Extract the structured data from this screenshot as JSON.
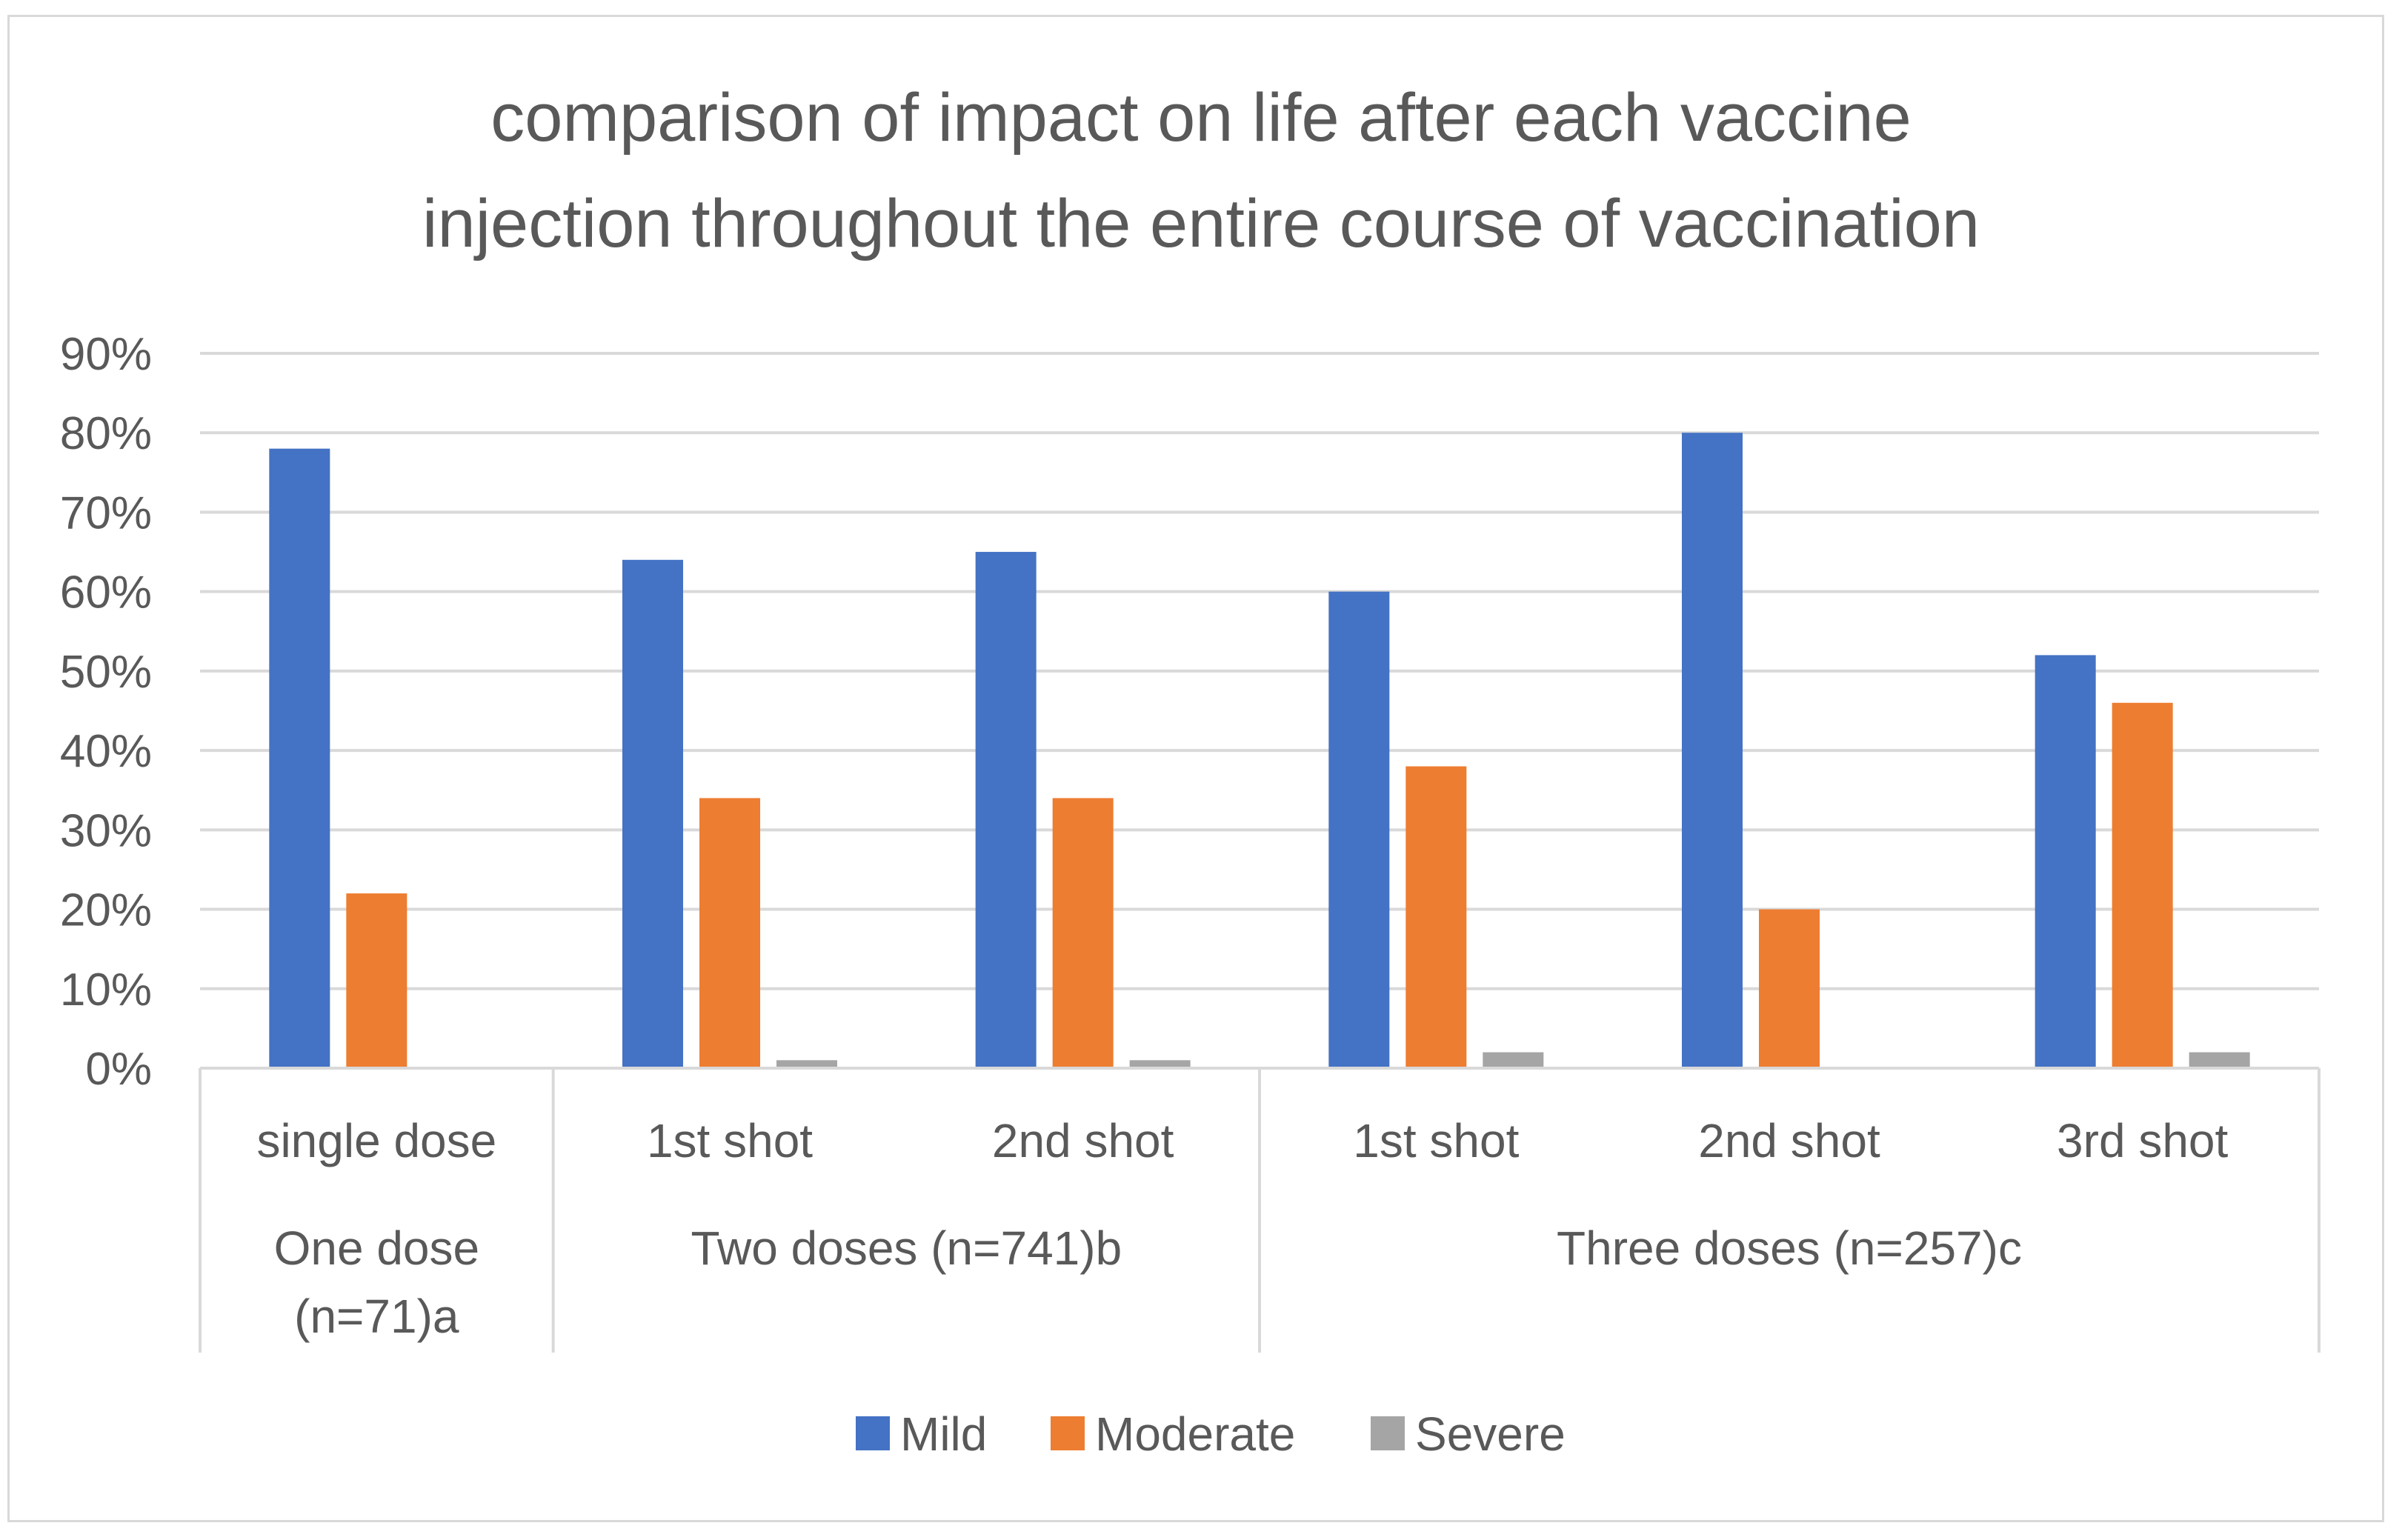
{
  "chart_data": {
    "type": "bar",
    "title": [
      "comparison of impact on life after each vaccine",
      "injection throughout the entire course of vaccination"
    ],
    "xlabel": "",
    "ylabel": "",
    "ylim": [
      0,
      90
    ],
    "y_ticks": [
      "0%",
      "10%",
      "20%",
      "30%",
      "40%",
      "50%",
      "60%",
      "70%",
      "80%",
      "90%"
    ],
    "y_tick_values": [
      0,
      10,
      20,
      30,
      40,
      50,
      60,
      70,
      80,
      90
    ],
    "grid": true,
    "categories": [
      "single dose",
      "1st shot",
      "2nd shot",
      "1st shot",
      "2nd shot",
      "3rd shot"
    ],
    "groups": [
      {
        "label": [
          "One dose",
          "(n=71)a"
        ],
        "span": 1
      },
      {
        "label": [
          "Two doses (n=741)b"
        ],
        "span": 2
      },
      {
        "label": [
          "Three doses (n=257)c"
        ],
        "span": 3
      }
    ],
    "series": [
      {
        "name": "Mild",
        "color": "#4472c4",
        "values": [
          78,
          64,
          65,
          60,
          80,
          52
        ]
      },
      {
        "name": "Moderate",
        "color": "#ed7d31",
        "values": [
          22,
          34,
          34,
          38,
          20,
          46
        ]
      },
      {
        "name": "Severe",
        "color": "#a5a5a5",
        "values": [
          0,
          1,
          1,
          2,
          0,
          2
        ]
      }
    ],
    "legend_position": "bottom"
  }
}
